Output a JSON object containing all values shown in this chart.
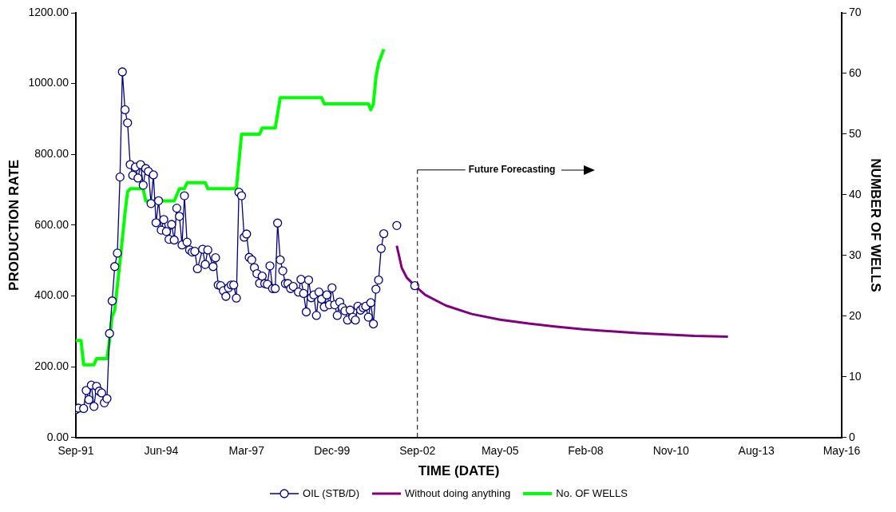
{
  "chart_data": {
    "type": "line",
    "xlabel": "TIME (DATE)",
    "ylabel": "PRODUCTION RATE",
    "y2label": "NUMBER OF WELLS",
    "xlim": [
      "1991-09",
      "2016-05"
    ],
    "xticks": [
      {
        "value": "1991-09",
        "label": "Sep-91"
      },
      {
        "value": "1994-06",
        "label": "Jun-94"
      },
      {
        "value": "1997-03",
        "label": "Mar-97"
      },
      {
        "value": "1999-12",
        "label": "Dec-99"
      },
      {
        "value": "2002-09",
        "label": "Sep-02"
      },
      {
        "value": "2005-05",
        "label": "May-05"
      },
      {
        "value": "2008-02",
        "label": "Feb-08"
      },
      {
        "value": "2010-11",
        "label": "Nov-10"
      },
      {
        "value": "2013-08",
        "label": "Aug-13"
      },
      {
        "value": "2016-05",
        "label": "May-16"
      }
    ],
    "ylim": [
      0,
      1200
    ],
    "yticks": [
      {
        "value": 0,
        "label": "0.00"
      },
      {
        "value": 200,
        "label": "200.00"
      },
      {
        "value": 400,
        "label": "400.00"
      },
      {
        "value": 600,
        "label": "600.00"
      },
      {
        "value": 800,
        "label": "800.00"
      },
      {
        "value": 1000,
        "label": "1000.00"
      },
      {
        "value": 1200,
        "label": "1200.00"
      }
    ],
    "y2lim": [
      0,
      70
    ],
    "y2ticks": [
      0,
      10,
      20,
      30,
      40,
      50,
      60,
      70
    ],
    "grid": false,
    "legend": "bottom",
    "ref_lines": [
      {
        "axis": "x",
        "value": "2002-09",
        "label": "Future Forecasting",
        "line_style": "dashed",
        "color": "#000000"
      }
    ],
    "series": [
      {
        "name": "OIL (STB/D)",
        "color": "#000080",
        "marker": "circle",
        "x": [
          "1991-09",
          "1991-10",
          "1991-12",
          "1992-01",
          "1992-02",
          "1992-03",
          "1992-04",
          "1992-05",
          "1992-06",
          "1992-07",
          "1992-08",
          "1992-09",
          "1992-10",
          "1992-11",
          "1992-12",
          "1993-01",
          "1993-02",
          "1993-03",
          "1993-04",
          "1993-05",
          "1993-06",
          "1993-07",
          "1993-08",
          "1993-09",
          "1993-10",
          "1993-11",
          "1993-12",
          "1994-01",
          "1994-02",
          "1994-03",
          "1994-04",
          "1994-05",
          "1994-06",
          "1994-07",
          "1994-08",
          "1994-09",
          "1994-10",
          "1994-11",
          "1994-12",
          "1995-01",
          "1995-02",
          "1995-03",
          "1995-04",
          "1995-05",
          "1995-06",
          "1995-07",
          "1995-08",
          "1995-10",
          "1995-11",
          "1995-12",
          "1996-02",
          "1996-03",
          "1996-04",
          "1996-05",
          "1996-06",
          "1996-07",
          "1996-08",
          "1996-09",
          "1996-10",
          "1996-11",
          "1996-12",
          "1997-01",
          "1997-02",
          "1997-03",
          "1997-04",
          "1997-05",
          "1997-06",
          "1997-07",
          "1997-08",
          "1997-09",
          "1997-10",
          "1997-11",
          "1997-12",
          "1998-01",
          "1998-02",
          "1998-03",
          "1998-04",
          "1998-05",
          "1998-06",
          "1998-07",
          "1998-08",
          "1998-09",
          "1998-11",
          "1998-12",
          "1999-01",
          "1999-02",
          "1999-03",
          "1999-04",
          "1999-05",
          "1999-06",
          "1999-07",
          "1999-08",
          "1999-09",
          "1999-10",
          "1999-11",
          "1999-12",
          "2000-01",
          "2000-02",
          "2000-03",
          "2000-04",
          "2000-05",
          "2000-06",
          "2000-07",
          "2000-08",
          "2000-09",
          "2000-10",
          "2000-11",
          "2000-12",
          "2001-01",
          "2001-02",
          "2001-03",
          "2001-04",
          "2001-05",
          "2001-06",
          "2001-07",
          "2001-08",
          "2001-10",
          "2002-01",
          "2002-04",
          "2002-08"
        ],
        "values": [
          79,
          83,
          82,
          133,
          107,
          148,
          88,
          145,
          131,
          126,
          98,
          110,
          294,
          386,
          483,
          521,
          736,
          1033,
          926,
          889,
          771,
          741,
          764,
          733,
          771,
          713,
          760,
          752,
          661,
          742,
          607,
          669,
          586,
          616,
          582,
          560,
          602,
          558,
          648,
          625,
          544,
          683,
          552,
          530,
          524,
          526,
          477,
          532,
          489,
          530,
          483,
          508,
          431,
          429,
          415,
          399,
          423,
          431,
          431,
          394,
          693,
          683,
          566,
          575,
          509,
          502,
          480,
          463,
          436,
          456,
          435,
          433,
          485,
          421,
          421,
          606,
          502,
          471,
          435,
          435,
          421,
          427,
          411,
          447,
          407,
          355,
          445,
          395,
          403,
          345,
          411,
          391,
          369,
          403,
          375,
          423,
          375,
          345,
          383,
          367,
          358,
          332,
          360,
          340,
          332,
          371,
          360,
          367,
          371,
          340,
          381,
          321,
          419,
          445,
          534,
          576,
          null,
          599,
          null,
          429
        ]
      },
      {
        "name": "Without doing anything",
        "color": "#800080",
        "marker": "none",
        "x": [
          "2002-01",
          "2002-03",
          "2002-05",
          "2002-08",
          "2002-12",
          "2003-08",
          "2004-06",
          "2005-05",
          "2006-04",
          "2007-02",
          "2008-01",
          "2008-12",
          "2009-10",
          "2010-09",
          "2011-08",
          "2012-09"
        ],
        "values": [
          542,
          479,
          451,
          429,
          403,
          373,
          349,
          333,
          322,
          314,
          306,
          300,
          295,
          291,
          287,
          285
        ]
      },
      {
        "name": "No. OF WELLS",
        "color": "#00ff00",
        "marker": "none",
        "axis": "y2",
        "x": [
          "1991-09",
          "1991-11",
          "1991-12",
          "1992-04",
          "1992-05",
          "1992-09",
          "1992-10",
          "1992-11",
          "1992-12",
          "1993-02",
          "1993-04",
          "1993-05",
          "1993-06",
          "1993-11",
          "1993-12",
          "1994-11",
          "1995-01",
          "1995-03",
          "1995-04",
          "1995-11",
          "1995-12",
          "1996-11",
          "1997-01",
          "1997-08",
          "1997-09",
          "1998-02",
          "1998-04",
          "1999-08",
          "1999-09",
          "2001-02",
          "2001-03",
          "2001-04",
          "2001-05",
          "2001-06",
          "2001-08"
        ],
        "values": [
          16,
          16,
          12,
          12,
          13,
          13,
          16,
          20,
          21,
          29,
          37,
          40.5,
          41,
          41,
          39,
          39,
          41,
          41,
          42,
          42,
          41,
          41,
          50,
          50,
          51,
          51,
          56,
          56,
          55,
          55,
          54,
          55,
          59.4,
          61.7,
          64
        ]
      }
    ]
  }
}
